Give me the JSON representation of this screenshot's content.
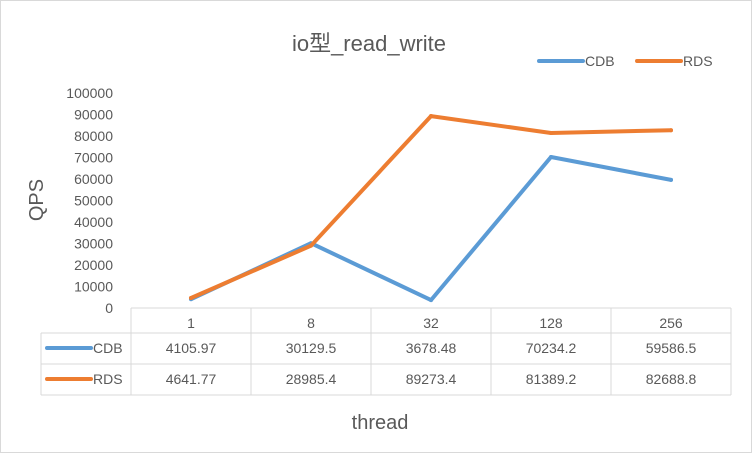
{
  "chart_data": {
    "type": "line",
    "title": "io型_read_write",
    "xlabel": "thread",
    "ylabel": "QPS",
    "categories": [
      "1",
      "8",
      "32",
      "128",
      "256"
    ],
    "ylim": [
      0,
      100000
    ],
    "yticks": [
      "0",
      "10000",
      "20000",
      "30000",
      "40000",
      "50000",
      "60000",
      "70000",
      "80000",
      "90000",
      "100000"
    ],
    "legend_position": "top-right",
    "grid": false,
    "data_table": true,
    "series": [
      {
        "name": "CDB",
        "color": "#5b9bd5",
        "values": [
          4105.97,
          30129.5,
          3678.48,
          70234.2,
          59586.5
        ],
        "labels": [
          "4105.97",
          "30129.5",
          "3678.48",
          "70234.2",
          "59586.5"
        ]
      },
      {
        "name": "RDS",
        "color": "#ed7d31",
        "values": [
          4641.77,
          28985.4,
          89273.4,
          81389.2,
          82688.8
        ],
        "labels": [
          "4641.77",
          "28985.4",
          "89273.4",
          "81389.2",
          "82688.8"
        ]
      }
    ]
  }
}
